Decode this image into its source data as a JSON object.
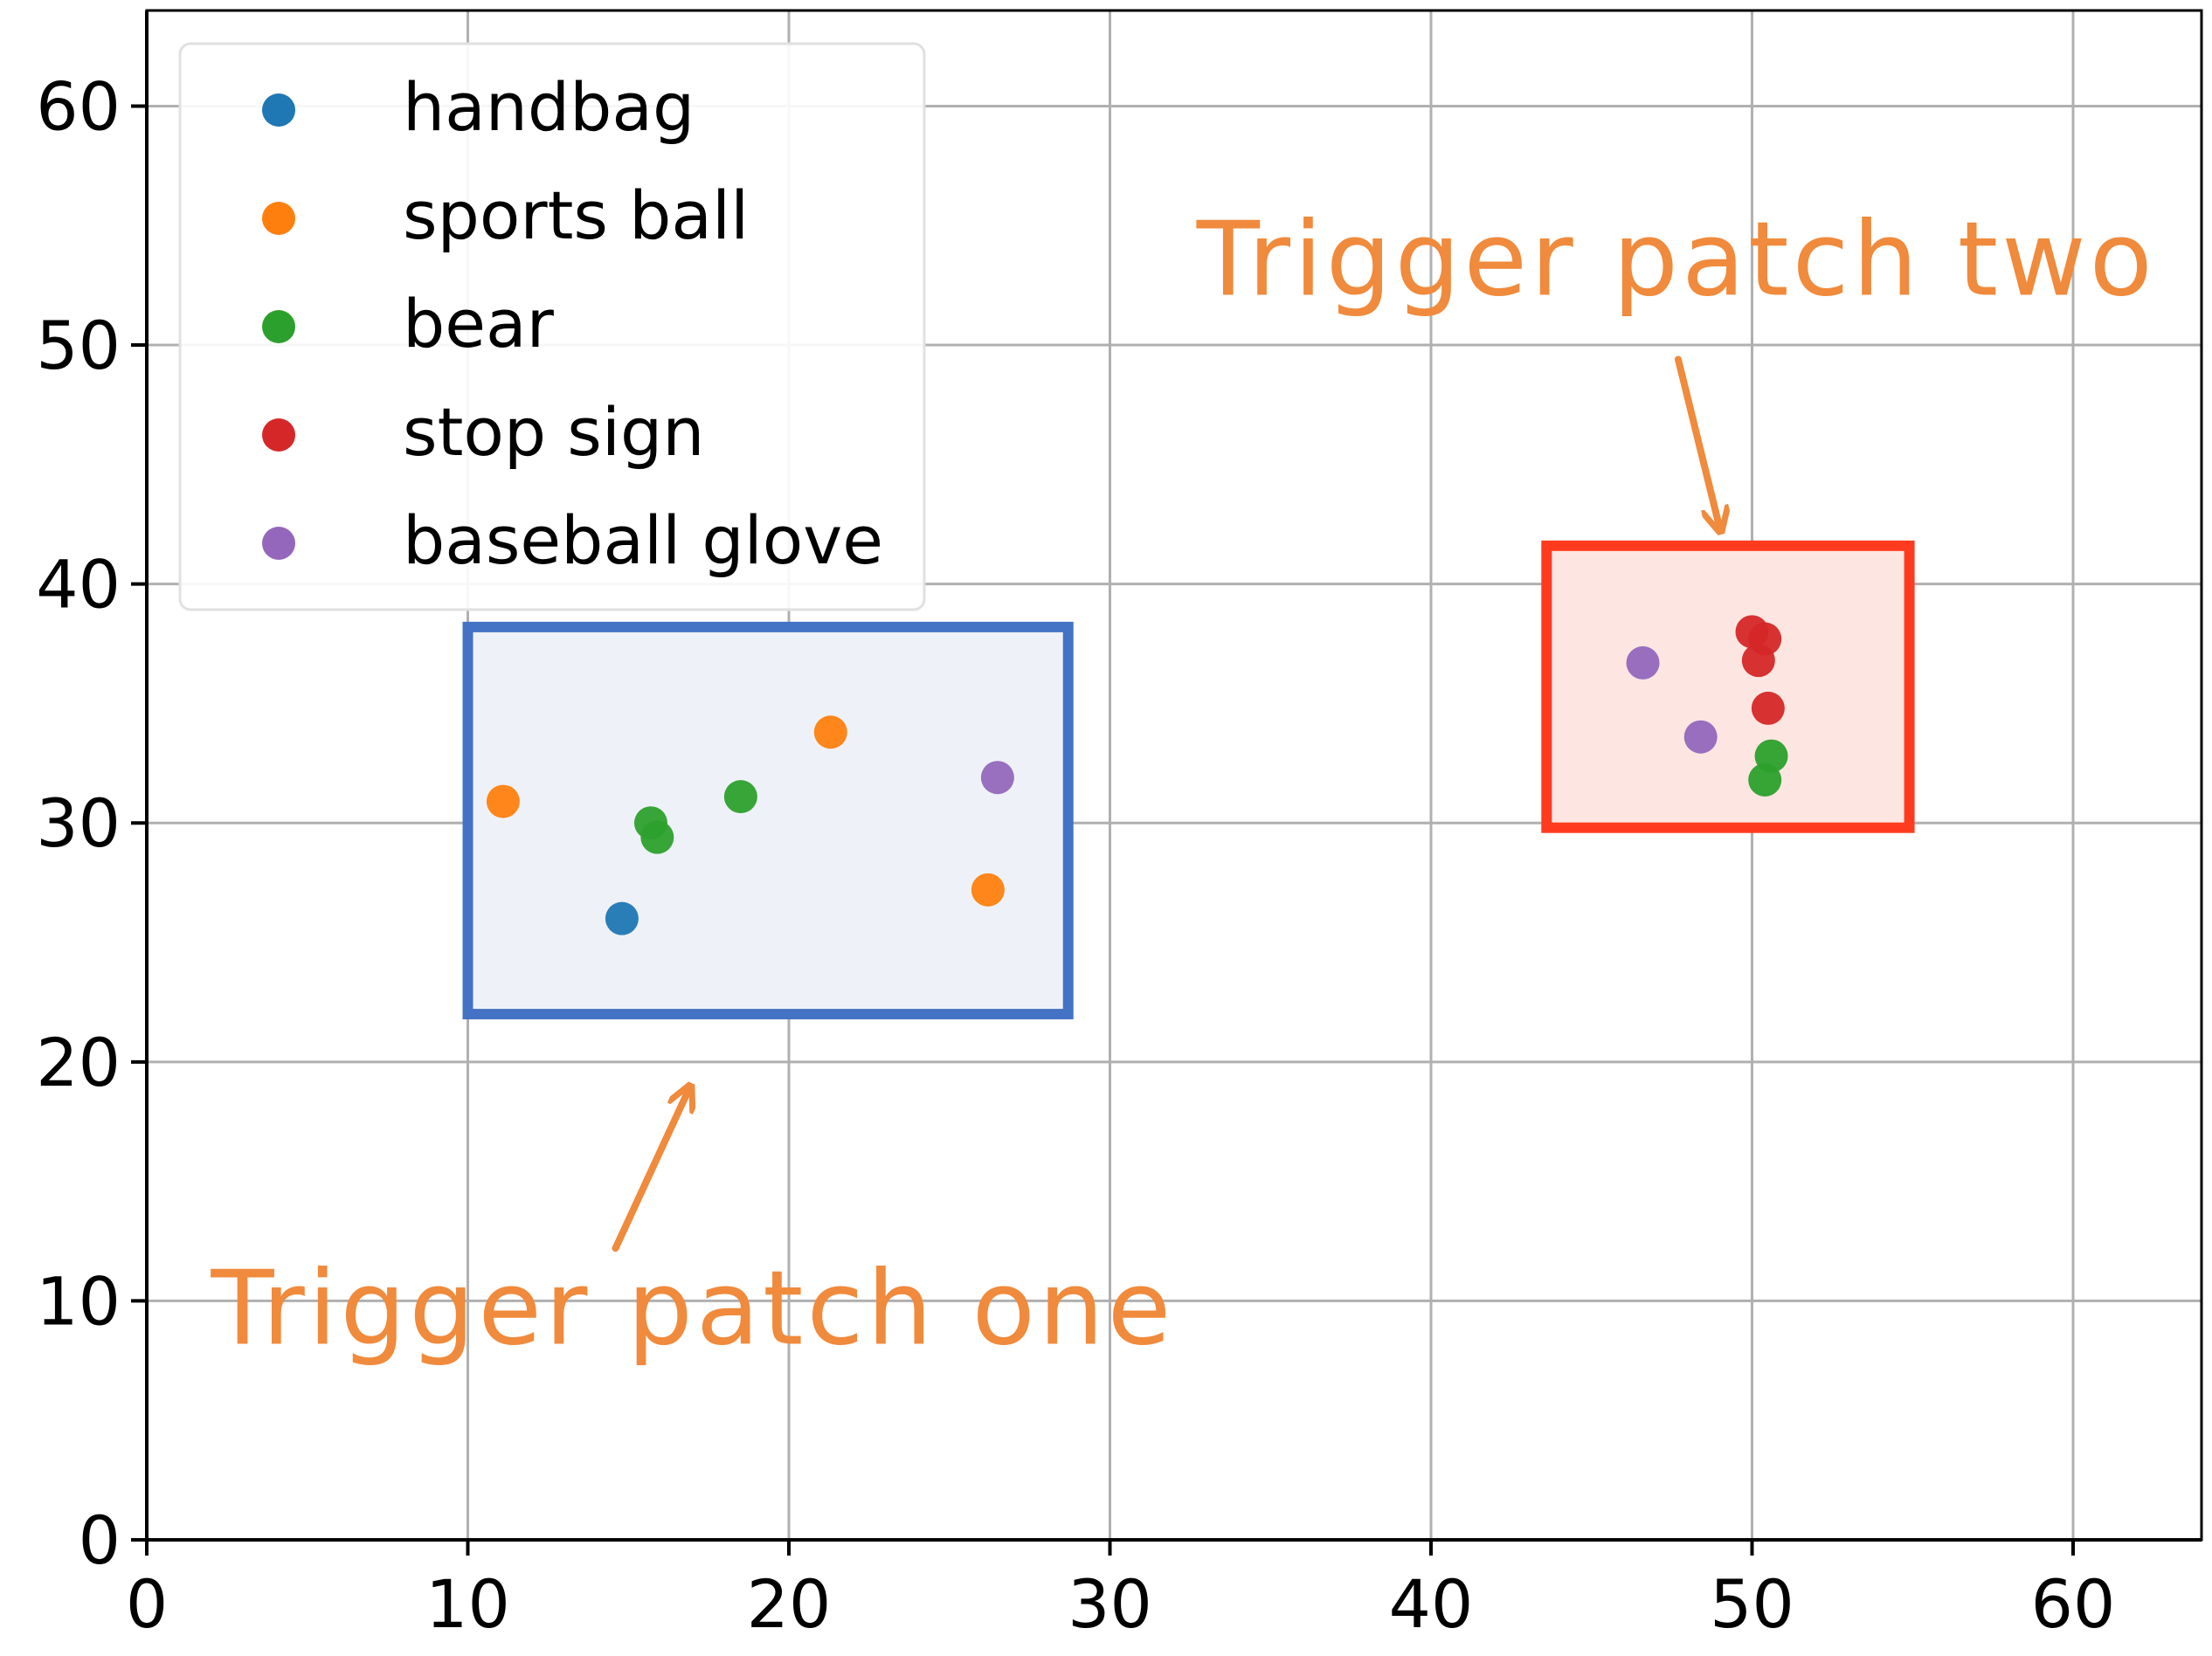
{
  "chart_data": {
    "type": "scatter",
    "title": "",
    "xlabel": "",
    "ylabel": "",
    "xlim": [
      0,
      64
    ],
    "ylim": [
      0,
      64
    ],
    "xticks": [
      "0",
      "10",
      "20",
      "30",
      "40",
      "50",
      "60"
    ],
    "yticks": [
      "0",
      "10",
      "20",
      "30",
      "40",
      "50",
      "60"
    ],
    "grid": true,
    "legend_position": "top-left",
    "series": [
      {
        "name": "handbag",
        "color": "#1f77b4",
        "points": [
          [
            14.8,
            26.0
          ]
        ]
      },
      {
        "name": "sports ball",
        "color": "#ff7f0e",
        "points": [
          [
            11.1,
            30.9
          ],
          [
            21.3,
            33.8
          ],
          [
            26.2,
            27.2
          ]
        ]
      },
      {
        "name": "bear",
        "color": "#2ca02c",
        "points": [
          [
            15.7,
            30.0
          ],
          [
            15.9,
            29.4
          ],
          [
            18.5,
            31.1
          ],
          [
            50.6,
            32.8
          ],
          [
            50.4,
            31.8
          ]
        ]
      },
      {
        "name": "stop sign",
        "color": "#d62728",
        "points": [
          [
            50.0,
            38.0
          ],
          [
            50.4,
            37.7
          ],
          [
            50.2,
            36.8
          ],
          [
            50.5,
            34.8
          ]
        ]
      },
      {
        "name": "baseball glove",
        "color": "#9467bd",
        "points": [
          [
            26.5,
            31.9
          ],
          [
            46.6,
            36.7
          ],
          [
            48.4,
            33.6
          ]
        ]
      }
    ],
    "annotations": [
      {
        "name": "trigger-patch-one",
        "label": "Trigger patch one",
        "box": {
          "x0": 10,
          "x1": 28.7,
          "y0": 22,
          "y1": 38.2
        },
        "edge_color": "#4472c4",
        "fill_color": "#eef2f8",
        "label_at": [
          2.0,
          8.2
        ],
        "arrow_from": [
          14.6,
          12.2
        ],
        "arrow_to": [
          16.9,
          18.9
        ]
      },
      {
        "name": "trigger-patch-two",
        "label": "Trigger patch two",
        "box": {
          "x0": 43.6,
          "x1": 54.9,
          "y0": 29.8,
          "y1": 41.6
        },
        "edge_color": "#ff3b1f",
        "fill_color": "#fde6e1",
        "label_at": [
          32.7,
          52.1
        ],
        "arrow_from": [
          47.7,
          49.4
        ],
        "arrow_to": [
          49.0,
          42.3
        ]
      }
    ]
  }
}
